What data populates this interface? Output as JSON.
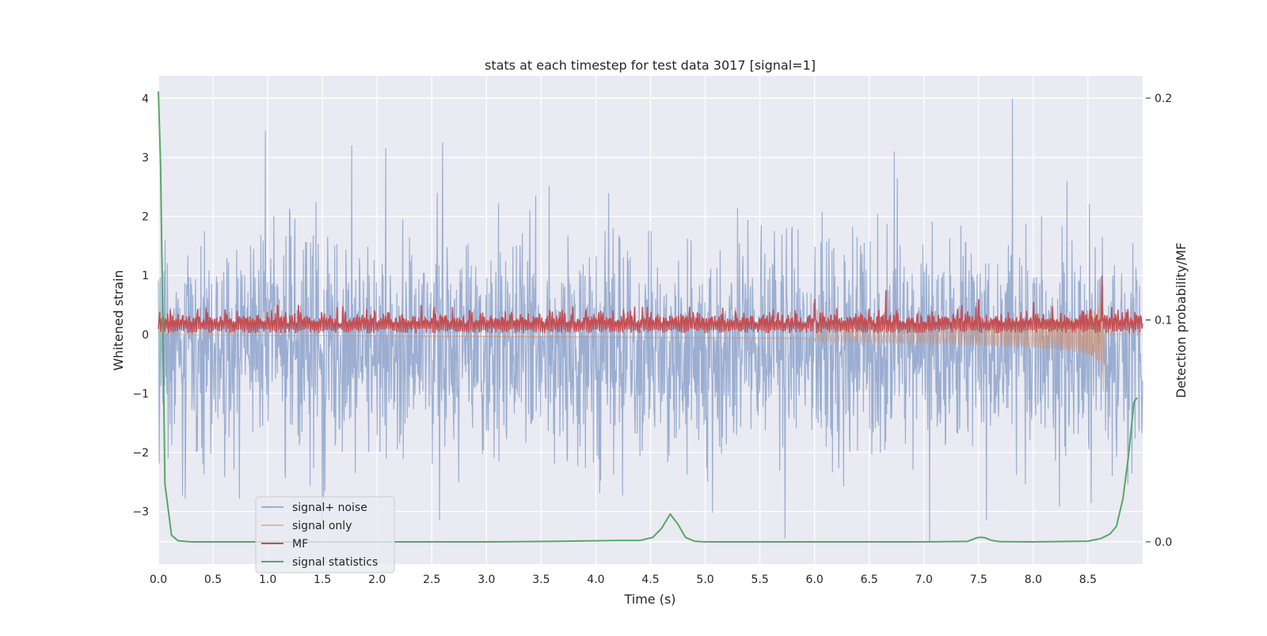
{
  "chart_data": {
    "type": "line",
    "title": "stats at each timestep for test data 3017 [signal=1]",
    "xlabel": "Time (s)",
    "ylabel": "Whitened strain",
    "ylabel_right": "Detection probability/MF",
    "xlim": [
      0.0,
      9.0
    ],
    "ylim": [
      -3.89,
      4.38
    ],
    "ylim_right": [
      -0.01,
      0.21
    ],
    "x_ticks": [
      "0.0",
      "0.5",
      "1.0",
      "1.5",
      "2.0",
      "2.5",
      "3.0",
      "3.5",
      "4.0",
      "4.5",
      "5.0",
      "5.5",
      "6.0",
      "6.5",
      "7.0",
      "7.5",
      "8.0",
      "8.5"
    ],
    "y_ticks": [
      "4",
      "3",
      "2",
      "1",
      "0",
      "−1",
      "−2",
      "−3"
    ],
    "y_ticks_right": [
      "0.2",
      "0.1",
      "0.0"
    ],
    "grid": true,
    "legend_position": "lower-left",
    "series": [
      {
        "name": "signal+ noise",
        "axis": "left",
        "color": "#4c72b0",
        "opacity": 0.5,
        "description_values": "noise-like trace, amplitude roughly between -3.3 and 4.0; mean near -0.25",
        "notable_peaks": [
          [
            0.98,
            3.45
          ],
          [
            1.77,
            3.2
          ],
          [
            2.08,
            3.15
          ],
          [
            2.6,
            3.25
          ],
          [
            6.73,
            3.1
          ],
          [
            7.81,
            4.0
          ],
          [
            5.73,
            -3.45
          ],
          [
            7.05,
            -3.5
          ],
          [
            2.57,
            -3.15
          ],
          [
            7.57,
            -3.15
          ]
        ]
      },
      {
        "name": "signal only",
        "axis": "left",
        "color": "#dd8452",
        "opacity": 0.5,
        "chirp": {
          "start": 6.0,
          "end": 8.64,
          "max_amplitude": 1.05
        }
      },
      {
        "name": "MF",
        "axis": "left",
        "color": "#c44e52",
        "description_values": "positive trace mostly between 0 and 0.5; spike near 8.63 reaching 1.0",
        "notable_peaks": [
          [
            6.0,
            0.6
          ],
          [
            6.65,
            0.75
          ],
          [
            7.5,
            0.6
          ],
          [
            8.0,
            0.55
          ],
          [
            8.63,
            1.0
          ]
        ]
      },
      {
        "name": "signal statistics",
        "axis": "right",
        "color": "#55a868",
        "x": [
          0.0,
          0.02,
          0.06,
          0.12,
          0.18,
          0.3,
          1.0,
          2.0,
          3.0,
          3.6,
          4.2,
          4.4,
          4.52,
          4.6,
          4.68,
          4.75,
          4.82,
          4.9,
          5.0,
          6.0,
          7.0,
          7.4,
          7.48,
          7.52,
          7.56,
          7.62,
          7.7,
          8.0,
          8.5,
          8.62,
          8.7,
          8.76,
          8.82,
          8.87,
          8.92,
          8.95
        ],
        "values": [
          0.203,
          0.17,
          0.026,
          0.003,
          0.0005,
          0.0,
          0.0,
          0.0,
          0.0,
          0.0002,
          0.0006,
          0.0006,
          0.002,
          0.006,
          0.0125,
          0.008,
          0.002,
          0.0003,
          0.0,
          0.0,
          0.0,
          0.0002,
          0.0018,
          0.002,
          0.0018,
          0.0006,
          0.0001,
          0.0,
          0.0003,
          0.0015,
          0.0035,
          0.007,
          0.0195,
          0.0385,
          0.063,
          0.065
        ]
      }
    ]
  }
}
